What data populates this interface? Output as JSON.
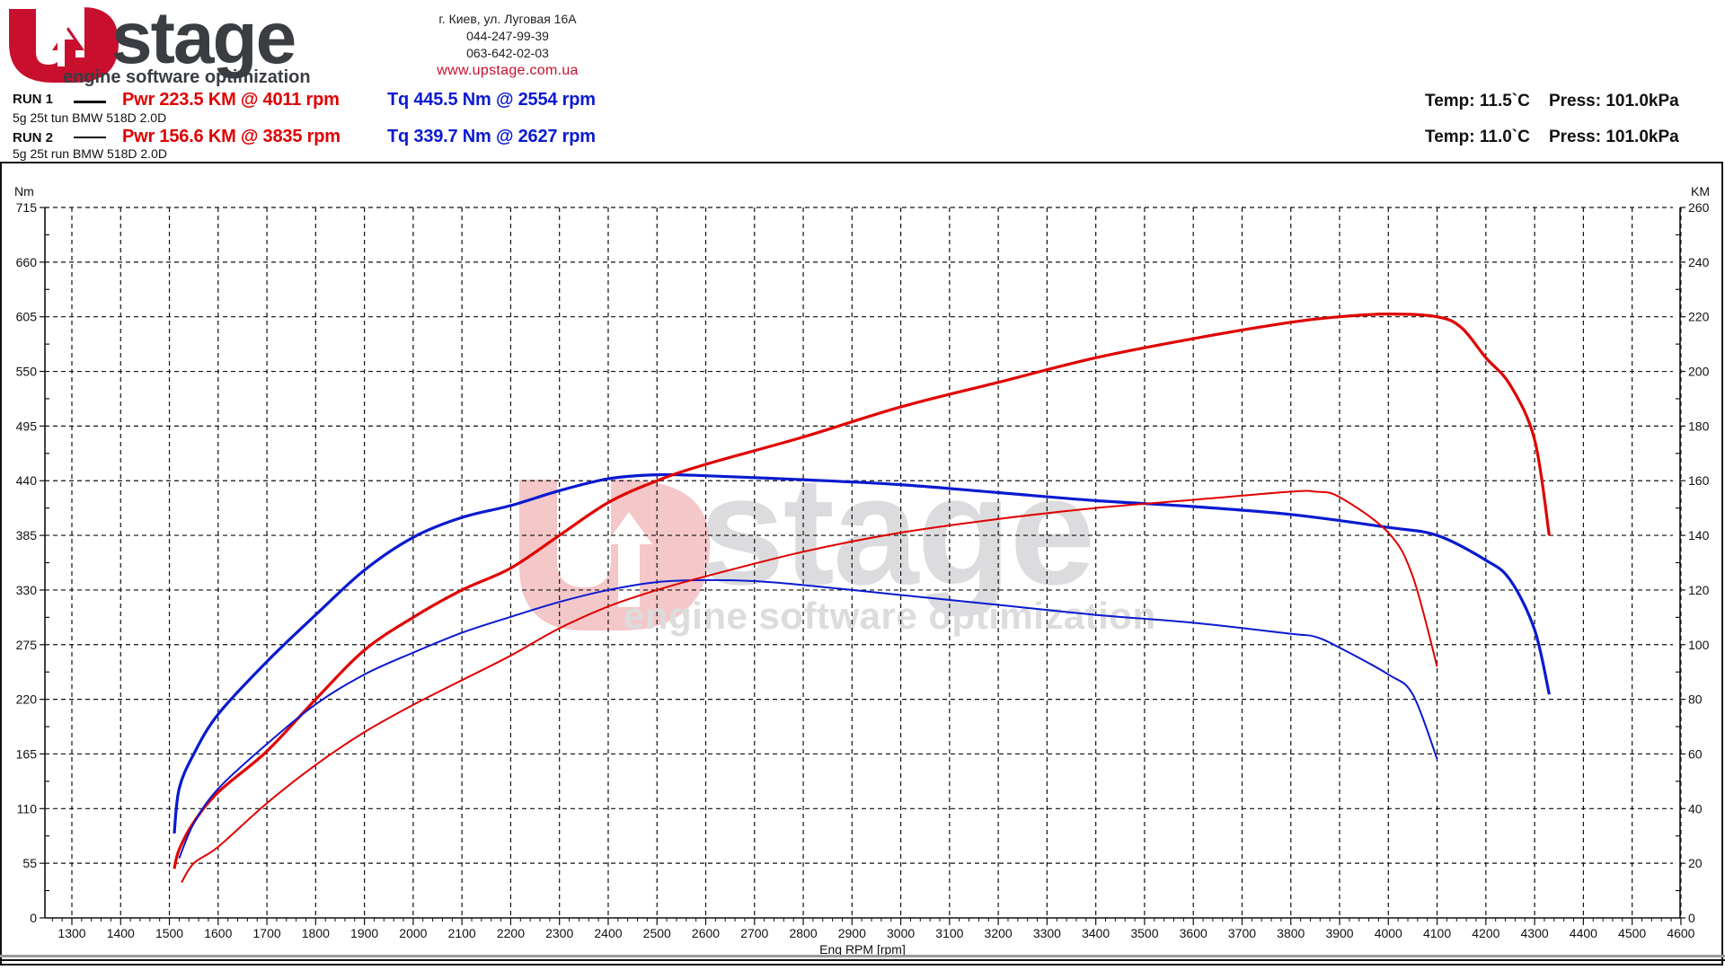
{
  "header": {
    "logo": {
      "brand": "stage",
      "tagline": "engine software optimization",
      "mark": "U-arrow-logo"
    },
    "contact": {
      "address": "г. Киев, ул. Луговая 16А",
      "phone1": "044-247-99-39",
      "phone2": "063-642-02-03",
      "website": "www.upstage.com.ua"
    }
  },
  "runs": [
    {
      "label": "RUN 1",
      "power": "Pwr  223.5 KM @ 4011 rpm",
      "torque": "Tq 445.5 Nm @ 2554 rpm",
      "description": "5g 25t tun BMW 518D 2.0D",
      "env": "Temp: 11.5`C    Press: 101.0kPa"
    },
    {
      "label": "RUN 2",
      "power": "Pwr  156.6 KM @ 3835 rpm",
      "torque": "Tq 339.7 Nm @ 2627 rpm",
      "description": "5g 25t run BMW 518D 2.0D",
      "env": "Temp: 11.0`C    Press: 101.0kPa"
    }
  ],
  "colors": {
    "power": "#e00000",
    "torque": "#0a1ad0",
    "grid": "#111111",
    "watermark_red": "#f4c7c9",
    "watermark_gray": "#dcdcde"
  },
  "chart_data": {
    "type": "line",
    "title": "",
    "xlabel": "Eng RPM [rpm]",
    "ylabel_left": "Nm",
    "ylabel_right": "KM",
    "xlim": [
      1250,
      4610
    ],
    "ylim_left": [
      0,
      715
    ],
    "ylim_right": [
      0,
      260
    ],
    "x_ticks": [
      1300,
      1400,
      1500,
      1600,
      1700,
      1800,
      1900,
      2000,
      2100,
      2200,
      2300,
      2400,
      2500,
      2600,
      2700,
      2800,
      2900,
      3000,
      3100,
      3200,
      3300,
      3400,
      3500,
      3600,
      3700,
      3800,
      3900,
      4000,
      4100,
      4200,
      4300,
      4400,
      4500,
      4600
    ],
    "y_ticks_left": [
      0,
      55,
      110,
      165,
      220,
      275,
      330,
      385,
      440,
      495,
      550,
      605,
      660,
      715
    ],
    "y_ticks_right": [
      0,
      20,
      40,
      60,
      80,
      100,
      120,
      140,
      160,
      180,
      200,
      220,
      240,
      260
    ],
    "grid": true,
    "legend_position": "top-left header",
    "series": [
      {
        "name": "RUN 1 Torque (Nm)",
        "axis": "left",
        "color": "#0a1ad0",
        "width": 3.2,
        "x": [
          1510,
          1520,
          1550,
          1600,
          1700,
          1800,
          1900,
          2000,
          2100,
          2200,
          2300,
          2400,
          2500,
          2600,
          2800,
          3000,
          3200,
          3400,
          3600,
          3800,
          4000,
          4100,
          4200,
          4250,
          4300,
          4330
        ],
        "y": [
          85,
          130,
          165,
          205,
          258,
          305,
          350,
          383,
          403,
          415,
          430,
          442,
          446,
          445,
          441,
          436,
          428,
          420,
          414,
          406,
          393,
          385,
          360,
          340,
          290,
          225
        ]
      },
      {
        "name": "RUN 1 Power (KM)",
        "axis": "right",
        "color": "#e00000",
        "width": 3.2,
        "x": [
          1510,
          1520,
          1550,
          1600,
          1700,
          1800,
          1900,
          2000,
          2100,
          2200,
          2300,
          2400,
          2500,
          2600,
          2800,
          3000,
          3200,
          3400,
          3600,
          3800,
          3900,
          4000,
          4100,
          4150,
          4200,
          4250,
          4300,
          4330
        ],
        "y": [
          18,
          25,
          35,
          46,
          61,
          80,
          98,
          110,
          120,
          128,
          140,
          152,
          160,
          166,
          176,
          187,
          196,
          205,
          212,
          218,
          220,
          221,
          220,
          216,
          205,
          195,
          175,
          140
        ]
      },
      {
        "name": "RUN 2 Torque (Nm)",
        "axis": "left",
        "color": "#0a1ad0",
        "width": 2,
        "x": [
          1520,
          1550,
          1600,
          1700,
          1800,
          1900,
          2000,
          2100,
          2200,
          2300,
          2400,
          2500,
          2600,
          2700,
          2800,
          3000,
          3200,
          3400,
          3600,
          3800,
          3850,
          3900,
          4000,
          4050,
          4100
        ],
        "y": [
          60,
          95,
          130,
          175,
          215,
          245,
          267,
          287,
          303,
          318,
          330,
          338,
          340,
          339,
          335,
          325,
          315,
          305,
          297,
          286,
          283,
          272,
          245,
          225,
          160
        ]
      },
      {
        "name": "RUN 2 Power (KM)",
        "axis": "right",
        "color": "#e00000",
        "width": 2,
        "x": [
          1525,
          1550,
          1600,
          1700,
          1800,
          1900,
          2000,
          2100,
          2200,
          2300,
          2400,
          2500,
          2600,
          2800,
          3000,
          3200,
          3400,
          3600,
          3800,
          3850,
          3900,
          4000,
          4050,
          4100
        ],
        "y": [
          13,
          20,
          26,
          42,
          56,
          68,
          78,
          87,
          96,
          106,
          114,
          120,
          125,
          134,
          141,
          146,
          150,
          153,
          156,
          156,
          154,
          141,
          125,
          92
        ]
      }
    ]
  }
}
